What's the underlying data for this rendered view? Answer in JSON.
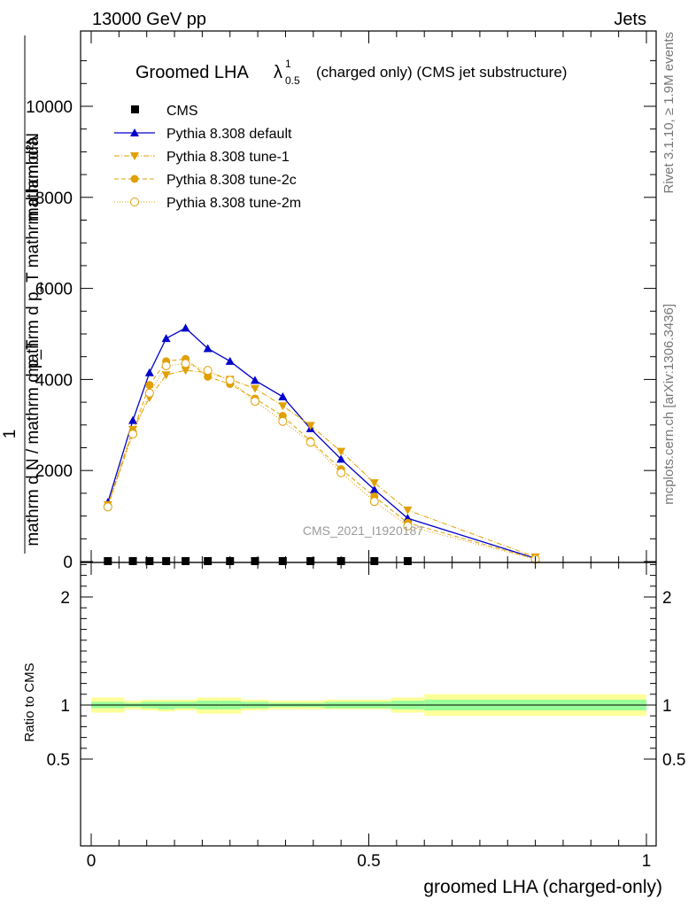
{
  "header": {
    "left": "13000 GeV pp",
    "right": "Jets"
  },
  "side": {
    "rivet": "Rivet 3.1.10, ≥ 1.9M events",
    "mcplots": "mcplots.cern.ch [arXiv:1306.3436]"
  },
  "watermark": "CMS_2021_I1920187",
  "colors": {
    "default": "#0000cc",
    "tunes": "#e0a000",
    "band_inner": "#99ff99",
    "band_outer": "#ffff99"
  },
  "chart_data": [
    {
      "type": "line",
      "title": "Groomed LHA",
      "title_symbol": "λ",
      "title_sup": "1",
      "title_sub": "0.5",
      "title_suffix": "(charged only) (CMS jet substructure)",
      "ylabel_lines": [
        "mathrm d²N",
        "1",
        "mathrm d N / mathrm d p_T mathrm d p_T mathrm d lambda"
      ],
      "ylabel_parts": {
        "top": "mathrm d²N",
        "top_denominator": "mathrm d p_T mathrm d lambda",
        "one": "1",
        "bottom": "mathrm d N / mathrm d p_T"
      },
      "xlim": [
        0,
        1
      ],
      "ylim": [
        0,
        12000
      ],
      "y_ticks": [
        "0",
        "2000",
        "4000",
        "6000",
        "8000",
        "10000"
      ],
      "y_tick_values": [
        0,
        2000,
        4000,
        6000,
        8000,
        10000
      ],
      "legend_position": "top-left",
      "x": [
        0.03,
        0.075,
        0.105,
        0.135,
        0.17,
        0.21,
        0.25,
        0.295,
        0.345,
        0.395,
        0.45,
        0.51,
        0.57,
        0.8
      ],
      "series": [
        {
          "name": "CMS",
          "marker": "square",
          "values": [
            10,
            10,
            10,
            10,
            10,
            10,
            10,
            10,
            10,
            10,
            10,
            10,
            10,
            null
          ]
        },
        {
          "name": "Pythia 8.308 default",
          "marker": "triangle-up",
          "line": "solid",
          "values": [
            1300,
            3100,
            4150,
            4900,
            5130,
            4680,
            4400,
            3980,
            3620,
            2920,
            2250,
            1580,
            950,
            70
          ]
        },
        {
          "name": "Pythia 8.308 tune-1",
          "marker": "triangle-down",
          "line": "dashdot",
          "values": [
            1250,
            2900,
            3600,
            4100,
            4200,
            4150,
            4000,
            3800,
            3420,
            2990,
            2420,
            1730,
            1130,
            100
          ]
        },
        {
          "name": "Pythia 8.308 tune-2c",
          "marker": "circle",
          "line": "dashed",
          "values": [
            1220,
            2850,
            3880,
            4400,
            4450,
            4060,
            3900,
            3580,
            3200,
            2650,
            2030,
            1430,
            850,
            60
          ]
        },
        {
          "name": "Pythia 8.308 tune-2m",
          "marker": "circle-open",
          "line": "dotted",
          "values": [
            1200,
            2800,
            3700,
            4300,
            4350,
            4200,
            3980,
            3520,
            3080,
            2620,
            1950,
            1320,
            780,
            50
          ]
        }
      ]
    },
    {
      "type": "area",
      "ylabel": "Ratio to CMS",
      "xlabel": "groomed LHA (charged-only)",
      "xlim": [
        0,
        1
      ],
      "ylim": [
        0.4,
        2.4
      ],
      "x_ticks": [
        "0",
        "0.5",
        "1"
      ],
      "x_tick_values": [
        0,
        0.5,
        1
      ],
      "y_ticks": [
        "0.5",
        "1",
        "2"
      ],
      "y_tick_values": [
        0.5,
        1,
        2
      ],
      "bins": [
        0,
        0.06,
        0.09,
        0.12,
        0.15,
        0.19,
        0.23,
        0.27,
        0.32,
        0.37,
        0.42,
        0.48,
        0.54,
        0.6,
        1.0
      ],
      "inner_band": [
        [
          0.97,
          1.03
        ],
        [
          0.98,
          1.02
        ],
        [
          0.97,
          1.03
        ],
        [
          0.96,
          1.03
        ],
        [
          0.97,
          1.03
        ],
        [
          0.96,
          1.04
        ],
        [
          0.96,
          1.04
        ],
        [
          0.97,
          1.03
        ],
        [
          0.98,
          1.02
        ],
        [
          0.98,
          1.02
        ],
        [
          0.97,
          1.03
        ],
        [
          0.97,
          1.03
        ],
        [
          0.96,
          1.04
        ],
        [
          0.95,
          1.05
        ]
      ],
      "outer_band": [
        [
          0.93,
          1.07
        ],
        [
          0.96,
          1.04
        ],
        [
          0.95,
          1.05
        ],
        [
          0.94,
          1.05
        ],
        [
          0.95,
          1.05
        ],
        [
          0.92,
          1.07
        ],
        [
          0.92,
          1.07
        ],
        [
          0.95,
          1.05
        ],
        [
          0.96,
          1.04
        ],
        [
          0.96,
          1.04
        ],
        [
          0.96,
          1.05
        ],
        [
          0.96,
          1.05
        ],
        [
          0.93,
          1.07
        ],
        [
          0.9,
          1.1
        ]
      ],
      "reference": 1
    }
  ]
}
